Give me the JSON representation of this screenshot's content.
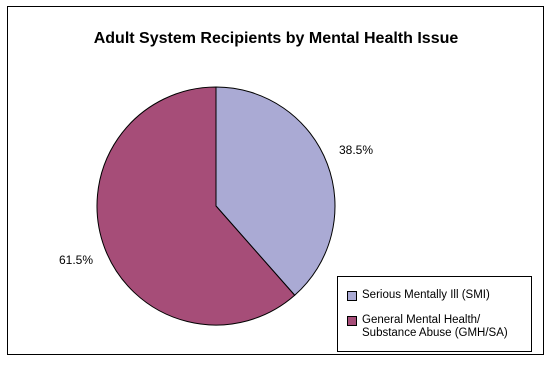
{
  "chart_data": {
    "type": "pie",
    "title": "Adult System Recipients by Mental Health Issue",
    "categories": [
      "Serious Mentally Ill (SMI)",
      "General Mental Health/\nSubstance Abuse (GMH/SA)"
    ],
    "values": [
      38.5,
      61.5
    ],
    "data_labels": [
      "38.5%",
      "61.5%"
    ],
    "colors": [
      "#aaaad4",
      "#a64d78"
    ],
    "start_angle_deg": 0,
    "direction": "clockwise",
    "legend_position": "bottom-right"
  }
}
